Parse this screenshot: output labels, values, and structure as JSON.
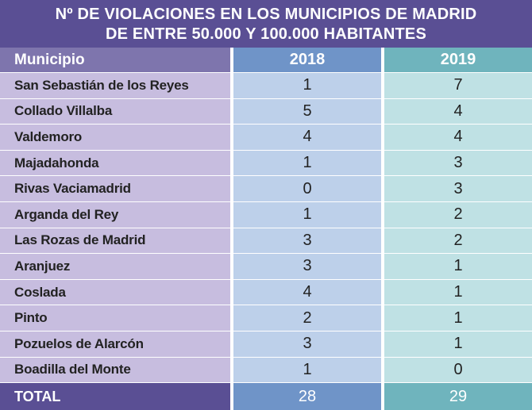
{
  "chart_data": {
    "type": "table",
    "title": "Nº DE VIOLACIONES EN LOS MUNICIPIOS DE MADRID",
    "subtitle": "DE ENTRE 50.000 Y 100.000 HABITANTES",
    "columns": [
      "Municipio",
      "2018",
      "2019"
    ],
    "rows": [
      {
        "municipio": "San Sebastián de los Reyes",
        "y2018": "1",
        "y2019": "7"
      },
      {
        "municipio": "Collado Villalba",
        "y2018": "5",
        "y2019": "4"
      },
      {
        "municipio": "Valdemoro",
        "y2018": "4",
        "y2019": "4"
      },
      {
        "municipio": "Majadahonda",
        "y2018": "1",
        "y2019": "3"
      },
      {
        "municipio": "Rivas Vaciamadrid",
        "y2018": "0",
        "y2019": "3"
      },
      {
        "municipio": "Arganda del Rey",
        "y2018": "1",
        "y2019": "2"
      },
      {
        "municipio": "Las Rozas de Madrid",
        "y2018": "3",
        "y2019": "2"
      },
      {
        "municipio": "Aranjuez",
        "y2018": "3",
        "y2019": "1"
      },
      {
        "municipio": "Coslada",
        "y2018": "4",
        "y2019": "1"
      },
      {
        "municipio": "Pinto",
        "y2018": "2",
        "y2019": "1"
      },
      {
        "municipio": "Pozuelos de Alarcón",
        "y2018": "3",
        "y2019": "1"
      },
      {
        "municipio": "Boadilla del Monte",
        "y2018": "1",
        "y2019": "0"
      }
    ],
    "total": {
      "label": "TOTAL",
      "y2018": "28",
      "y2019": "29"
    }
  },
  "colors": {
    "title_bg": "#5a4f94",
    "header_municipio": "#7e75ad",
    "header_2018": "#6f94c8",
    "header_2019": "#6fb4bd",
    "body_municipio": "#c7bddf",
    "body_2018": "#bdd0ea",
    "body_2019": "#bfe1e4"
  }
}
